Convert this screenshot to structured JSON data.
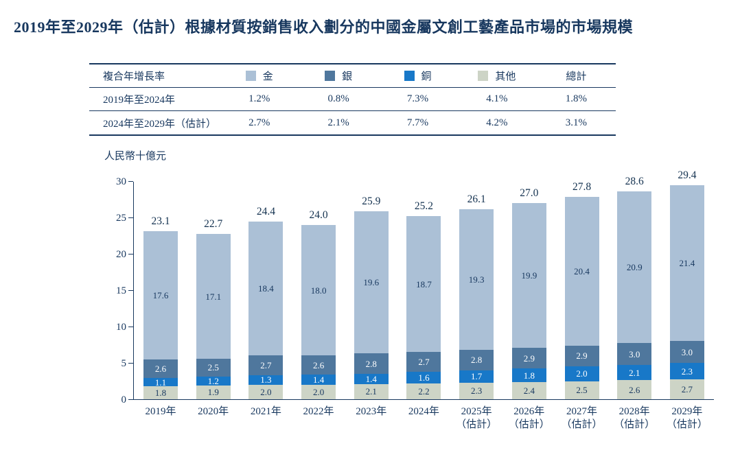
{
  "title": "2019年至2029年（估計）根據材質按銷售收入劃分的中國金屬文創工藝產品市場的市場規模",
  "colors": {
    "accent": "#17375e",
    "gold": "#abc0d6",
    "silver": "#4f779d",
    "copper": "#1878c8",
    "other": "#cdd4c6"
  },
  "table": {
    "header_label": "複合年增長率",
    "columns": [
      {
        "label": "金",
        "color": "#abc0d6"
      },
      {
        "label": "銀",
        "color": "#4f779d"
      },
      {
        "label": "銅",
        "color": "#1878c8"
      },
      {
        "label": "其他",
        "color": "#cdd4c6"
      },
      {
        "label": "總計",
        "color": ""
      }
    ],
    "rows": [
      {
        "label": "2019年至2024年",
        "values": [
          "1.2%",
          "0.8%",
          "7.3%",
          "4.1%",
          "1.8%"
        ]
      },
      {
        "label": "2024年至2029年（估計）",
        "values": [
          "2.7%",
          "2.1%",
          "7.7%",
          "4.2%",
          "3.1%"
        ]
      }
    ]
  },
  "chart_data": {
    "type": "bar",
    "stacked": true,
    "title": "2019年至2029年（估計）根據材質按銷售收入劃分的中國金屬文創工藝產品市場的市場規模",
    "unit_label": "人民幣十億元",
    "xlabel": "",
    "ylabel": "人民幣十億元",
    "ylim": [
      0,
      30
    ],
    "yticks": [
      0,
      5,
      10,
      15,
      20,
      25,
      30
    ],
    "grid": false,
    "legend_position": "table-header",
    "categories": [
      "2019年",
      "2020年",
      "2021年",
      "2022年",
      "2023年",
      "2024年",
      "2025年\n（估計）",
      "2026年\n（估計）",
      "2027年\n（估計）",
      "2028年\n（估計）",
      "2029年\n（估計）"
    ],
    "series": [
      {
        "name": "金",
        "key": "gold",
        "color": "#abc0d6",
        "label_color": "#17375e",
        "values": [
          17.6,
          17.1,
          18.4,
          18.0,
          19.6,
          18.7,
          19.3,
          19.9,
          20.4,
          20.9,
          21.4
        ]
      },
      {
        "name": "銀",
        "key": "silver",
        "color": "#4f779d",
        "label_color": "#ffffff",
        "values": [
          2.6,
          2.5,
          2.7,
          2.6,
          2.8,
          2.7,
          2.8,
          2.9,
          2.9,
          3.0,
          3.0
        ]
      },
      {
        "name": "銅",
        "key": "copper",
        "color": "#1878c8",
        "label_color": "#ffffff",
        "values": [
          1.1,
          1.2,
          1.3,
          1.4,
          1.4,
          1.6,
          1.7,
          1.8,
          2.0,
          2.1,
          2.3
        ]
      },
      {
        "name": "其他",
        "key": "other",
        "color": "#cdd4c6",
        "label_color": "#17375e",
        "values": [
          1.8,
          1.9,
          2.0,
          2.0,
          2.1,
          2.2,
          2.3,
          2.4,
          2.5,
          2.6,
          2.7
        ]
      }
    ],
    "totals": [
      23.1,
      22.7,
      24.4,
      24.0,
      25.9,
      25.2,
      26.1,
      27.0,
      27.8,
      28.6,
      29.4
    ]
  }
}
